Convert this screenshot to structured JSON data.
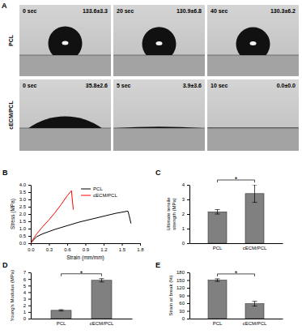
{
  "chart_data": [
    {
      "type": "contact_angle",
      "panel": "A",
      "rows": [
        {
          "name": "PCL",
          "times": [
            "0 sec",
            "20 sec",
            "40 sec"
          ],
          "values": [
            133.6,
            130.9,
            130.3
          ],
          "value_labels": [
            "133.6±3.3",
            "130.9±6.8",
            "130.3±6.2"
          ]
        },
        {
          "name": "cECM/PCL",
          "times": [
            "0 sec",
            "5 sec",
            "10 sec"
          ],
          "values": [
            35.8,
            3.9,
            0.0
          ],
          "value_labels": [
            "35.8±2.6",
            "3.9±3.6",
            "0.0±0.0"
          ]
        }
      ]
    },
    {
      "type": "line",
      "panel": "B",
      "x_label": "Strain (mm/mm)",
      "y_label": "Stress (MPa)",
      "xlim": [
        0,
        1.8
      ],
      "ylim": [
        0,
        4
      ],
      "xticks": [
        {
          "value": 0,
          "label": "0.0"
        },
        0.3,
        0.6,
        0.9,
        1.2,
        1.5,
        1.8
      ],
      "yticks": [
        {
          "value": 0,
          "label": "0.0"
        },
        0.5,
        {
          "value": 1,
          "label": "1.0"
        },
        1.5,
        {
          "value": 2,
          "label": "2.0"
        },
        2.5,
        {
          "value": 3,
          "label": "3.0"
        },
        3.5,
        {
          "value": 4,
          "label": "4.0"
        }
      ],
      "legend": "upper center",
      "series": [
        {
          "name": "PCL",
          "color": "#000000",
          "x": [
            0,
            0.05,
            0.1,
            0.2,
            0.4,
            0.6,
            0.8,
            1.0,
            1.2,
            1.4,
            1.6,
            1.62,
            1.65
          ],
          "values": [
            0,
            0.25,
            0.45,
            0.65,
            0.95,
            1.2,
            1.45,
            1.65,
            1.85,
            2.05,
            2.2,
            1.9,
            1.35
          ]
        },
        {
          "name": "cECM/PCL",
          "color": "#ff0000",
          "x": [
            0,
            0.05,
            0.1,
            0.2,
            0.3,
            0.4,
            0.5,
            0.6,
            0.67,
            0.7
          ],
          "values": [
            0,
            0.35,
            0.65,
            1.15,
            1.6,
            2.1,
            2.65,
            3.25,
            3.6,
            2.3
          ]
        }
      ]
    },
    {
      "type": "bar",
      "panel": "C",
      "y_label": "Ultimate tensile strength (MPa)",
      "categories": [
        "PCL",
        "cECM/PCL"
      ],
      "values": [
        2.15,
        3.4
      ],
      "errors": [
        0.15,
        0.6
      ],
      "color": "#808080",
      "ylim": [
        0,
        4
      ],
      "yticks": [
        0,
        1,
        2,
        3,
        4
      ],
      "annotations": [
        "*"
      ]
    },
    {
      "type": "bar",
      "panel": "D",
      "y_label": "Young's Modulus (MPa)",
      "categories": [
        "PCL",
        "cECM/PCL"
      ],
      "values": [
        1.25,
        5.8
      ],
      "errors": [
        0.1,
        0.25
      ],
      "color": "#808080",
      "ylim": [
        0,
        7
      ],
      "yticks": [
        0,
        1,
        2,
        3,
        4,
        5,
        6,
        7
      ],
      "annotations": [
        "*"
      ]
    },
    {
      "type": "bar",
      "panel": "E",
      "y_label": "Strain at break (%)",
      "categories": [
        "PCL",
        "cECM/PCL"
      ],
      "values": [
        150,
        58
      ],
      "errors": [
        5,
        9
      ],
      "color": "#808080",
      "ylim": [
        0,
        180
      ],
      "yticks": [
        0,
        30,
        60,
        90,
        120,
        150,
        180
      ],
      "annotations": [
        "*"
      ]
    }
  ]
}
